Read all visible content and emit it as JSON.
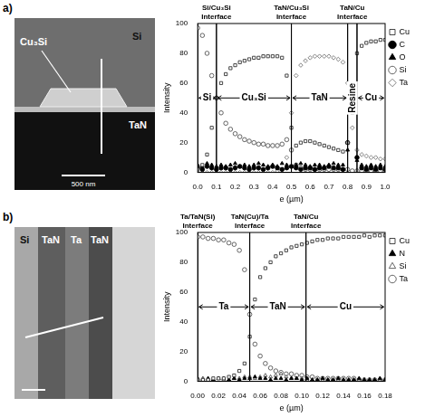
{
  "panels": [
    "a)",
    "b)"
  ],
  "micrographs": [
    {
      "labels": [
        "Cu₃Si",
        "Si",
        "TaN"
      ],
      "scale_bar": "500 nm"
    },
    {
      "labels": [
        "Si",
        "TaN",
        "Ta",
        "TaN"
      ]
    }
  ],
  "chart_data": [
    {
      "type": "scatter",
      "x_label": "e (µm)",
      "y_label": "Intensity",
      "xlim": [
        0,
        1
      ],
      "ylim": [
        0,
        100
      ],
      "xticks": [
        {
          "value": 0,
          "label": "0.0"
        },
        0.1,
        0.2,
        0.3,
        0.4,
        0.5,
        0.6,
        0.7,
        0.8,
        0.9,
        {
          "value": 1,
          "label": "1.0"
        }
      ],
      "yticks": [
        0,
        20,
        40,
        60,
        80,
        100
      ],
      "grid": false,
      "legend": "right",
      "x": [
        0,
        0.025,
        0.05,
        0.075,
        0.1,
        0.125,
        0.15,
        0.175,
        0.2,
        0.225,
        0.25,
        0.275,
        0.3,
        0.325,
        0.35,
        0.375,
        0.4,
        0.425,
        0.45,
        0.475,
        0.5,
        0.525,
        0.55,
        0.575,
        0.6,
        0.625,
        0.65,
        0.675,
        0.7,
        0.725,
        0.75,
        0.775,
        0.8,
        0.825,
        0.85,
        0.875,
        0.9,
        0.925,
        0.95,
        0.975,
        1.0
      ],
      "series": [
        {
          "name": "Cu",
          "color": "#333333",
          "marker": "square",
          "values": [
            2,
            5,
            12,
            30,
            50,
            60,
            66,
            70,
            72,
            74,
            75,
            76,
            77,
            77,
            78,
            78,
            78,
            78,
            77,
            65,
            30,
            18,
            20,
            21,
            21,
            20,
            19,
            18,
            17,
            16,
            15,
            14,
            20,
            50,
            80,
            85,
            87,
            88,
            88,
            89,
            89
          ]
        },
        {
          "name": "C",
          "color": "#000000",
          "marker": "filled_circle",
          "values": [
            3,
            2,
            4,
            3,
            2,
            3,
            3,
            2,
            3,
            4,
            3,
            2,
            3,
            3,
            2,
            3,
            4,
            3,
            2,
            3,
            4,
            3,
            2,
            3,
            3,
            2,
            3,
            3,
            4,
            3,
            3,
            2,
            20,
            55,
            10,
            3,
            2,
            3,
            2,
            3,
            2
          ]
        },
        {
          "name": "O",
          "color": "#000000",
          "marker": "filled_triangle",
          "values": [
            5,
            4,
            6,
            5,
            4,
            5,
            4,
            5,
            6,
            4,
            5,
            4,
            5,
            6,
            5,
            4,
            5,
            4,
            6,
            5,
            4,
            5,
            6,
            5,
            4,
            5,
            5,
            4,
            5,
            6,
            5,
            5,
            15,
            40,
            8,
            5,
            4,
            5,
            4,
            5,
            4
          ]
        },
        {
          "name": "Si",
          "color": "#555555",
          "marker": "circle",
          "values": [
            97,
            92,
            80,
            65,
            50,
            40,
            33,
            29,
            26,
            24,
            22,
            21,
            20,
            19,
            19,
            18,
            18,
            18,
            19,
            22,
            15,
            5,
            3,
            2,
            2,
            2,
            2,
            2,
            2,
            2,
            2,
            2,
            2,
            1,
            1,
            1,
            1,
            1,
            1,
            1,
            1
          ]
        },
        {
          "name": "Ta",
          "color": "#777777",
          "marker": "diamond",
          "values": [
            0,
            0,
            0,
            0,
            0,
            0,
            0,
            0,
            0,
            0,
            0,
            0,
            0,
            0,
            0,
            0,
            0,
            1,
            2,
            10,
            40,
            65,
            72,
            75,
            77,
            78,
            78,
            78,
            78,
            77,
            76,
            74,
            60,
            30,
            15,
            12,
            11,
            10,
            10,
            9,
            9
          ]
        }
      ],
      "annotations": {
        "interfaces": [
          {
            "x": 0.1,
            "label": "Si/Cu₃Si Interface"
          },
          {
            "x": 0.5,
            "label": "TaN/Cu₃Si Interface"
          },
          {
            "x": 0.825,
            "label": "TaN/Cu Interface"
          }
        ],
        "region_y": 50,
        "regions": [
          {
            "from": 0,
            "to": 0.1,
            "label": "Si"
          },
          {
            "from": 0.1,
            "to": 0.5,
            "label": "Cu₃Si"
          },
          {
            "from": 0.5,
            "to": 0.8,
            "label": "TaN"
          },
          {
            "from": 0.8,
            "to": 0.85,
            "label": "Resine"
          },
          {
            "from": 0.85,
            "to": 1,
            "label": "Cu"
          }
        ]
      }
    },
    {
      "type": "scatter",
      "x_label": "e (µm)",
      "y_label": "Intensity",
      "xlim": [
        0,
        0.18
      ],
      "ylim": [
        0,
        100
      ],
      "xticks": [
        {
          "value": 0,
          "label": "0.00"
        },
        {
          "value": 0.02,
          "label": "0.02"
        },
        {
          "value": 0.04,
          "label": "0.04"
        },
        {
          "value": 0.06,
          "label": "0.06"
        },
        {
          "value": 0.08,
          "label": "0.08"
        },
        {
          "value": 0.1,
          "label": "0.10"
        },
        {
          "value": 0.12,
          "label": "0.12"
        },
        {
          "value": 0.14,
          "label": "0.14"
        },
        {
          "value": 0.16,
          "label": "0.16"
        },
        {
          "value": 0.18,
          "label": "0.18"
        }
      ],
      "yticks": [
        0,
        20,
        40,
        60,
        80,
        100
      ],
      "grid": false,
      "legend": "right",
      "x": [
        0,
        0.005,
        0.01,
        0.015,
        0.02,
        0.025,
        0.03,
        0.035,
        0.04,
        0.045,
        0.05,
        0.055,
        0.06,
        0.065,
        0.07,
        0.075,
        0.08,
        0.085,
        0.09,
        0.095,
        0.1,
        0.105,
        0.11,
        0.115,
        0.12,
        0.125,
        0.13,
        0.135,
        0.14,
        0.145,
        0.15,
        0.155,
        0.16,
        0.165,
        0.17,
        0.175,
        0.18
      ],
      "series": [
        {
          "name": "Cu",
          "color": "#333333",
          "marker": "square",
          "values": [
            1,
            1,
            1,
            2,
            2,
            2,
            3,
            4,
            7,
            12,
            30,
            55,
            70,
            76,
            80,
            84,
            86,
            88,
            90,
            91,
            92,
            93,
            94,
            95,
            95,
            96,
            96,
            96,
            97,
            97,
            97,
            97,
            98,
            97,
            98,
            98,
            98
          ]
        },
        {
          "name": "N",
          "color": "#000000",
          "marker": "filled_triangle",
          "values": [
            2,
            1,
            2,
            1,
            2,
            2,
            1,
            2,
            1,
            2,
            2,
            3,
            2,
            2,
            1,
            2,
            2,
            1,
            2,
            2,
            1,
            2,
            1,
            1,
            2,
            1,
            1,
            2,
            1,
            1,
            1,
            2,
            1,
            1,
            1,
            2,
            1
          ]
        },
        {
          "name": "Si",
          "color": "#555555",
          "marker": "triangle",
          "values": [
            1,
            2,
            1,
            1,
            2,
            1,
            1,
            2,
            2,
            3,
            3,
            2,
            3,
            4,
            3,
            4,
            5,
            3,
            2,
            2,
            2,
            1,
            1,
            1,
            1,
            1,
            1,
            1,
            1,
            1,
            1,
            1,
            1,
            1,
            1,
            1,
            1
          ]
        },
        {
          "name": "Ta",
          "color": "#555555",
          "marker": "circle",
          "values": [
            97,
            97,
            96,
            96,
            95,
            95,
            93,
            92,
            88,
            75,
            45,
            25,
            17,
            12,
            9,
            7,
            6,
            5,
            5,
            4,
            4,
            3,
            3,
            2,
            2,
            2,
            2,
            2,
            2,
            2,
            2,
            1,
            1,
            1,
            1,
            1,
            1
          ]
        }
      ],
      "annotations": {
        "interfaces": [
          {
            "x": 0,
            "label": "Ta/TaN(Si) Interface"
          },
          {
            "x": 0.05,
            "label": "TaN(Cu)/Ta Interface"
          },
          {
            "x": 0.104,
            "label": "TaN/Cu Interface"
          }
        ],
        "region_y": 50,
        "regions": [
          {
            "from": 0,
            "to": 0.05,
            "label": "Ta"
          },
          {
            "from": 0.05,
            "to": 0.104,
            "label": "TaN"
          },
          {
            "from": 0.104,
            "to": 0.18,
            "label": "Cu"
          }
        ]
      }
    }
  ]
}
